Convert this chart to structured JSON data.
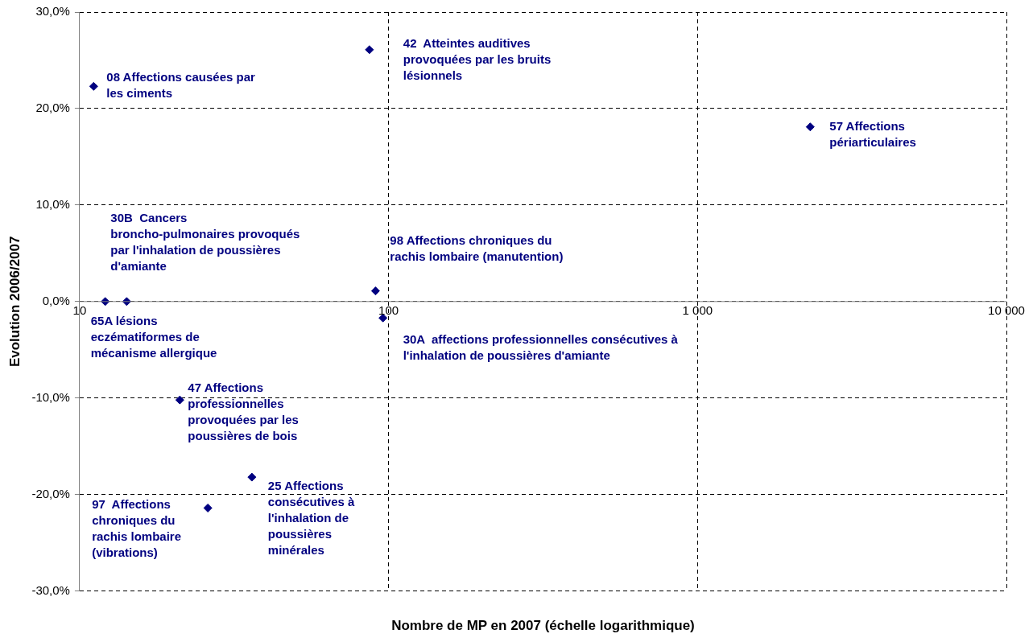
{
  "chart_data": {
    "type": "scatter",
    "xlabel": "Nombre de MP en 2007 (échelle logarithmique)",
    "ylabel": "Evolution 2006/2007",
    "x": [
      11.1,
      86.7,
      2317,
      14.2,
      12.1,
      90.7,
      95.9,
      21.1,
      36.1,
      26.0
    ],
    "values": [
      22.3,
      26.1,
      18.1,
      0,
      0,
      1.1,
      -1.7,
      -10.2,
      -18.2,
      -21.4
    ],
    "color": "#000080",
    "marker": "diamond",
    "log": "x",
    "grid": true,
    "xlim": [
      10,
      10000
    ],
    "ylim": [
      -30,
      30
    ],
    "xticks": [
      {
        "value": 10,
        "label": "10"
      },
      {
        "value": 100,
        "label": "100"
      },
      {
        "value": 1000,
        "label": "1 000"
      },
      {
        "value": 10000,
        "label": "10 000"
      }
    ],
    "yticks": [
      {
        "value": -30,
        "label": "-30,0%"
      },
      {
        "value": -20,
        "label": "-20,0%"
      },
      {
        "value": -10,
        "label": "-10,0%"
      },
      {
        "value": 0,
        "label": "0,0%"
      },
      {
        "value": 10,
        "label": "10,0%"
      },
      {
        "value": 20,
        "label": "20,0%"
      },
      {
        "value": 30,
        "label": "30,0%"
      }
    ],
    "annotations": [
      {
        "text": "08 Affections causées par les ciments",
        "x": 11.1,
        "y": 22.3
      },
      {
        "text": "42  Atteintes auditives provoquées par les bruits lésionnels",
        "x": 86.7,
        "y": 26.1
      },
      {
        "text": "57 Affections périarticulaires",
        "x": 2317,
        "y": 18.1
      },
      {
        "text": "30B  Cancers broncho-pulmonaires provoqués par l'inhalation de poussières d'amiante",
        "x": 14.2,
        "y": 0
      },
      {
        "text": "65A lésions eczématiformes de mécanisme allergique",
        "x": 12.1,
        "y": 0
      },
      {
        "text": "98 Affections chroniques du rachis lombaire (manutention)",
        "x": 90.7,
        "y": 1.1
      },
      {
        "text": "30A  affections professionnelles consécutives à l'inhalation de poussières d'amiante",
        "x": 95.9,
        "y": -1.7
      },
      {
        "text": "47 Affections professionnelles provoquées par les poussières de bois",
        "x": 21.1,
        "y": -10.2
      },
      {
        "text": "25 Affections consécutives à l'inhalation de poussières minérales",
        "x": 36.1,
        "y": -18.2
      },
      {
        "text": "97  Affections chroniques du rachis lombaire (vibrations)",
        "x": 26.0,
        "y": -21.4
      }
    ]
  }
}
